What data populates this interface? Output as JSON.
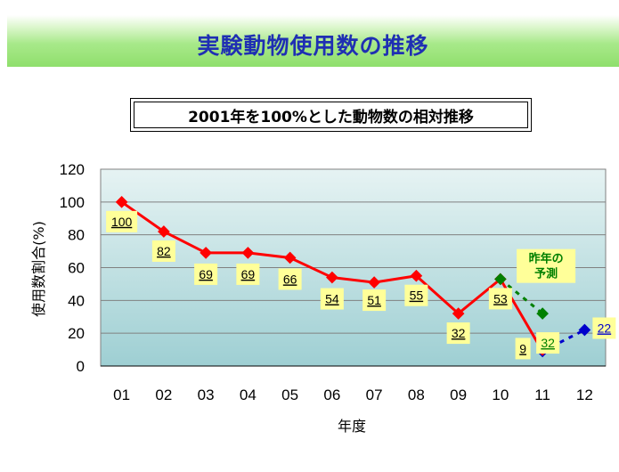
{
  "title": "実験動物使用数の推移",
  "chart_data": {
    "type": "line",
    "title": "2001年を100%とした動物数の相対推移",
    "xlabel": "年度",
    "ylabel": "使用数割合(%)",
    "categories": [
      "01",
      "02",
      "03",
      "04",
      "05",
      "06",
      "07",
      "08",
      "09",
      "10",
      "11",
      "12"
    ],
    "ylim": [
      0,
      120
    ],
    "yticks": [
      0,
      20,
      40,
      60,
      80,
      100,
      120
    ],
    "grid": true,
    "series": [
      {
        "values": [
          100,
          82,
          69,
          69,
          66,
          54,
          51,
          55,
          32,
          53,
          9,
          null
        ],
        "labels": [
          "100",
          "82",
          "69",
          "69",
          "66",
          "54",
          "51",
          "55",
          "32",
          "53",
          "9",
          ""
        ],
        "color": "#ff0000",
        "marker": "diamond",
        "style": "solid"
      },
      {
        "values": [
          null,
          null,
          null,
          null,
          null,
          null,
          null,
          null,
          null,
          53,
          32,
          null
        ],
        "labels": [
          "",
          "",
          "",
          "",
          "",
          "",
          "",
          "",
          "",
          "",
          "32",
          ""
        ],
        "color": "#008000",
        "marker": "diamond",
        "style": "dotted"
      },
      {
        "values": [
          null,
          null,
          null,
          null,
          null,
          null,
          null,
          null,
          null,
          null,
          9,
          22
        ],
        "labels": [
          "",
          "",
          "",
          "",
          "",
          "",
          "",
          "",
          "",
          "",
          "",
          "22"
        ],
        "color": "#0000cc",
        "marker": "diamond",
        "style": "dotted"
      }
    ],
    "annotations": [
      {
        "text_lines": [
          "昨年の",
          "予測"
        ],
        "color": "#008000"
      }
    ],
    "colors": {
      "plot_bg_top": "#e6f3f3",
      "plot_bg_bottom": "#9ecfd3",
      "label_bg": "#ffff99"
    }
  }
}
